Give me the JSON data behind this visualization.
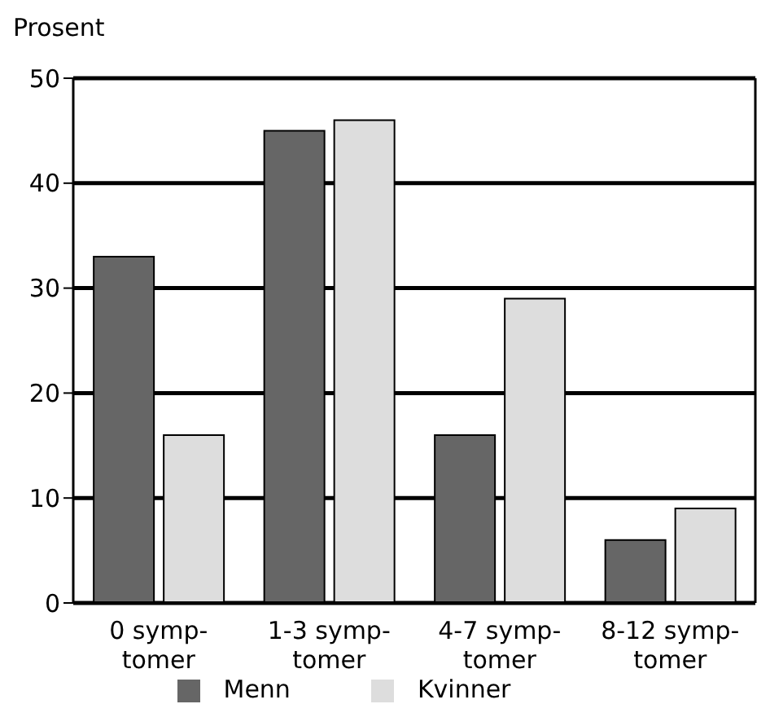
{
  "chart_data": {
    "type": "bar",
    "ylabel": "Prosent",
    "categories": [
      "0 symp-\ntomer",
      "1-3 symp-\ntomer",
      "4-7 symp-\ntomer",
      "8-12 symp-\ntomer"
    ],
    "series": [
      {
        "name": "Menn",
        "color": "#666666",
        "values": [
          33,
          45,
          16,
          6
        ]
      },
      {
        "name": "Kvinner",
        "color": "#dddddd",
        "values": [
          16,
          46,
          29,
          9
        ]
      }
    ],
    "ylim": [
      0,
      50
    ],
    "yticks": [
      0,
      10,
      20,
      30,
      40,
      50
    ],
    "grid": "y",
    "legend": "bottom"
  }
}
